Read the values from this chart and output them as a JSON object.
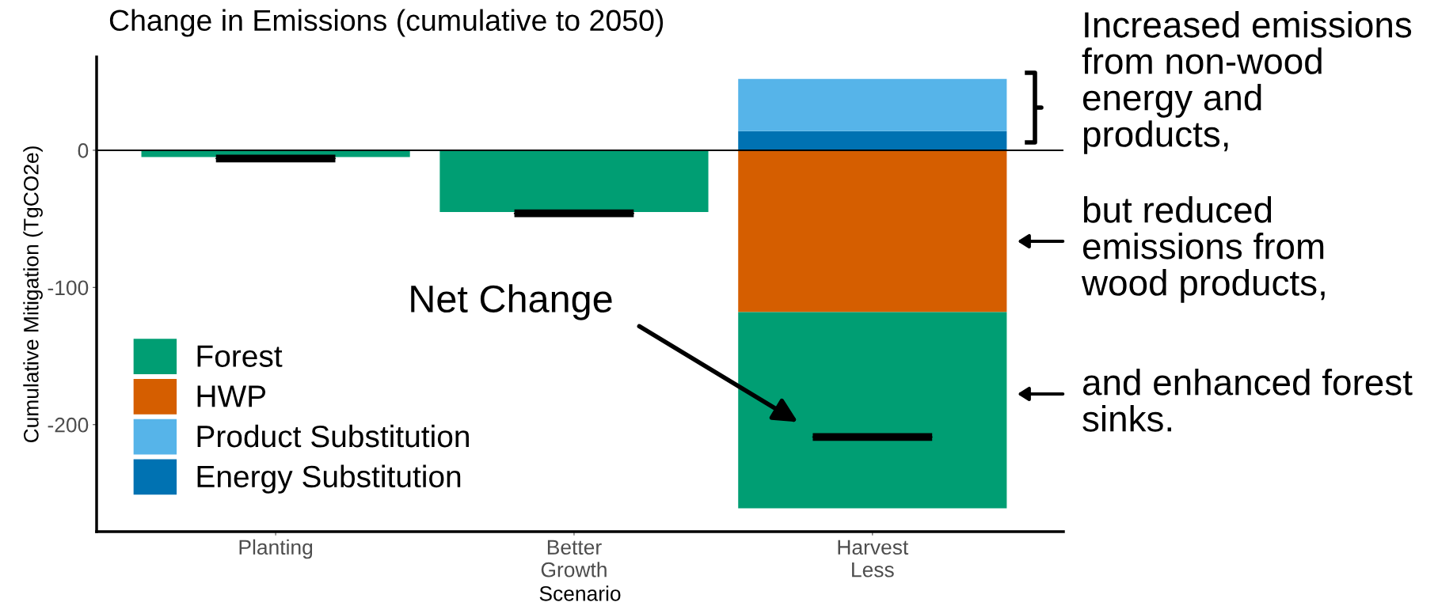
{
  "chart_data": {
    "type": "bar",
    "title": "Change in Emissions (cumulative to 2050)",
    "xlabel": "Scenario",
    "ylabel": "Cumulative Mitigation (TgCO2e)",
    "categories": [
      "Planting",
      "Better\nGrowth",
      "Harvest\nLess"
    ],
    "stacked": true,
    "series": [
      {
        "name": "Forest",
        "color": "#009e73",
        "values": [
          -5,
          -45,
          -143
        ]
      },
      {
        "name": "HWP",
        "color": "#d55e00",
        "values": [
          null,
          null,
          -118
        ]
      },
      {
        "name": "Product Substitution",
        "color": "#56b4e9",
        "values": [
          null,
          null,
          38
        ]
      },
      {
        "name": "Energy Substitution",
        "color": "#0072b2",
        "values": [
          null,
          null,
          14
        ]
      },
      {
        "type": "box",
        "color": "#000000",
        "boxes": [
          {
            "low": -6,
            "q1": -6,
            "median": -6,
            "q3": -6,
            "high": -6
          },
          {
            "low": -46,
            "q1": -46,
            "median": -46,
            "q3": -46,
            "high": -46
          },
          {
            "low": -209,
            "q1": -209,
            "median": -209,
            "q3": -209,
            "high": -209
          }
        ]
      }
    ],
    "ylim": [
      -278,
      68
    ],
    "yticks": [
      0,
      -100,
      -200
    ],
    "ref_lines": [
      {
        "axis": "y",
        "value": 0,
        "color": "#000000"
      }
    ],
    "grid": false,
    "legend": "bottom left",
    "annotations": [
      "Net Change",
      "Increased emissions\nfrom non-wood\nenergy and\nproducts,",
      "but reduced\nemissions from\nwood products,",
      "and enhanced forest\nsinks."
    ]
  }
}
